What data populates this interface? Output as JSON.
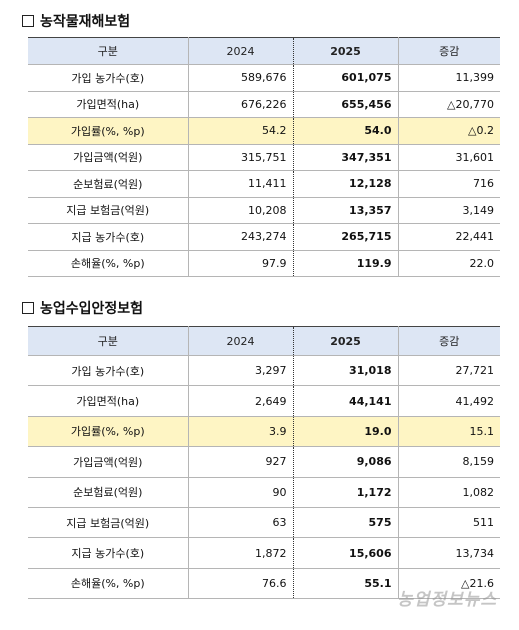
{
  "section1": {
    "title": "농작물재해보험",
    "headers": [
      "구분",
      "2024",
      "2025",
      "증감"
    ],
    "rows": [
      {
        "label": "가입 농가수(호)",
        "y2024": "589,676",
        "y2025": "601,075",
        "change": "11,399",
        "highlight": false
      },
      {
        "label": "가입면적(ha)",
        "y2024": "676,226",
        "y2025": "655,456",
        "change": "△20,770",
        "highlight": false
      },
      {
        "label": "가입률(%, %p)",
        "y2024": "54.2",
        "y2025": "54.0",
        "change": "△0.2",
        "highlight": true
      },
      {
        "label": "가입금액(억원)",
        "y2024": "315,751",
        "y2025": "347,351",
        "change": "31,601",
        "highlight": false
      },
      {
        "label": "순보험료(억원)",
        "y2024": "11,411",
        "y2025": "12,128",
        "change": "716",
        "highlight": false
      },
      {
        "label": "지급 보험금(억원)",
        "y2024": "10,208",
        "y2025": "13,357",
        "change": "3,149",
        "highlight": false
      },
      {
        "label": "지급 농가수(호)",
        "y2024": "243,274",
        "y2025": "265,715",
        "change": "22,441",
        "highlight": false
      },
      {
        "label": "손해율(%, %p)",
        "y2024": "97.9",
        "y2025": "119.9",
        "change": "22.0",
        "highlight": false
      }
    ]
  },
  "section2": {
    "title": "농업수입안정보험",
    "headers": [
      "구분",
      "2024",
      "2025",
      "증감"
    ],
    "rows": [
      {
        "label": "가입 농가수(호)",
        "y2024": "3,297",
        "y2025": "31,018",
        "change": "27,721",
        "highlight": false
      },
      {
        "label": "가입면적(ha)",
        "y2024": "2,649",
        "y2025": "44,141",
        "change": "41,492",
        "highlight": false
      },
      {
        "label": "가입률(%, %p)",
        "y2024": "3.9",
        "y2025": "19.0",
        "change": "15.1",
        "highlight": true
      },
      {
        "label": "가입금액(억원)",
        "y2024": "927",
        "y2025": "9,086",
        "change": "8,159",
        "highlight": false
      },
      {
        "label": "순보험료(억원)",
        "y2024": "90",
        "y2025": "1,172",
        "change": "1,082",
        "highlight": false
      },
      {
        "label": "지급 보험금(억원)",
        "y2024": "63",
        "y2025": "575",
        "change": "511",
        "highlight": false
      },
      {
        "label": "지급 농가수(호)",
        "y2024": "1,872",
        "y2025": "15,606",
        "change": "13,734",
        "highlight": false
      },
      {
        "label": "손해율(%, %p)",
        "y2024": "76.6",
        "y2025": "55.1",
        "change": "△21.6",
        "highlight": false
      }
    ]
  },
  "watermark": "농업정보뉴스"
}
